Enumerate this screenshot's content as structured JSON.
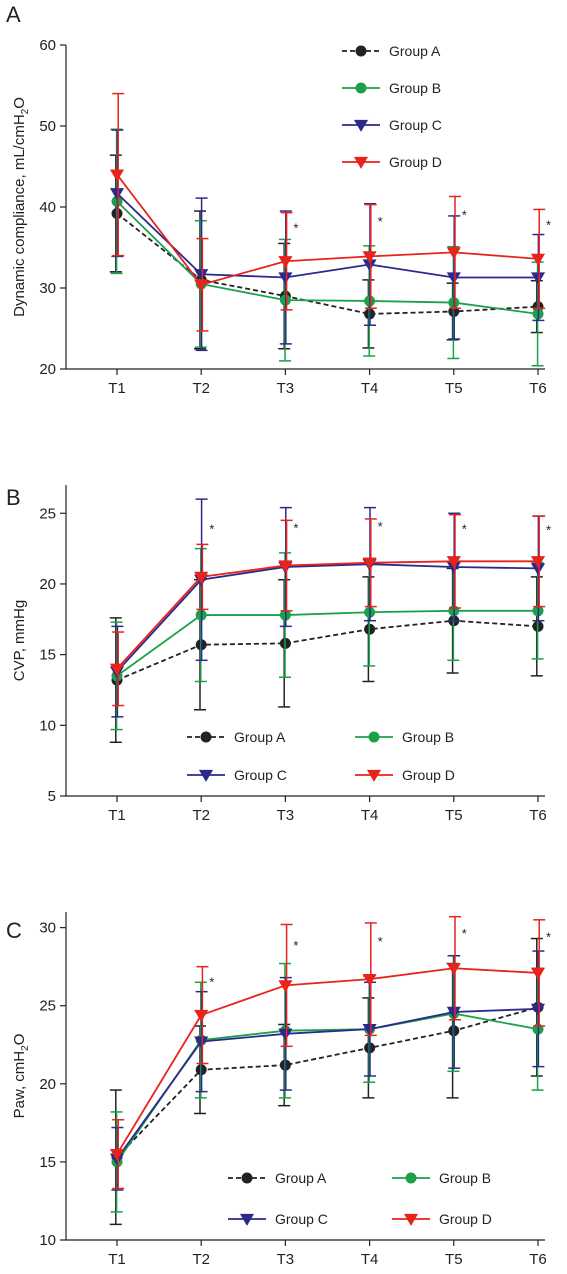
{
  "chart_data": [
    {
      "panel_label": "A",
      "type": "line",
      "ylabel_parts": [
        "Dynamic compliance, mL/cmH",
        "2",
        "O"
      ],
      "categories": [
        "T1",
        "T2",
        "T3",
        "T4",
        "T5",
        "T6"
      ],
      "ylim": [
        20,
        60
      ],
      "yticks": [
        20,
        30,
        40,
        50,
        60
      ],
      "grid": false,
      "legend_placement": "top-right",
      "legend_order": [
        0,
        1,
        2,
        3
      ],
      "series": [
        {
          "name": "Group A",
          "color": "#222222",
          "marker": "circle",
          "dashed": true,
          "values": [
            39.2,
            31.0,
            29.0,
            26.8,
            27.1,
            27.7
          ],
          "err": [
            7.2,
            8.5,
            6.5,
            4.2,
            3.5,
            3.2
          ]
        },
        {
          "name": "Group B",
          "color": "#1aa14a",
          "marker": "circle",
          "dashed": false,
          "values": [
            40.7,
            30.5,
            28.5,
            28.4,
            28.2,
            26.8
          ],
          "err": [
            8.9,
            7.8,
            7.5,
            6.8,
            6.9,
            6.4
          ]
        },
        {
          "name": "Group C",
          "color": "#2b2a8c",
          "marker": "triangle-down",
          "dashed": false,
          "values": [
            41.7,
            31.7,
            31.3,
            32.9,
            31.3,
            31.3
          ],
          "err": [
            7.8,
            9.4,
            8.2,
            7.5,
            7.6,
            5.3
          ]
        },
        {
          "name": "Group D",
          "color": "#e8231c",
          "marker": "triangle-down",
          "dashed": false,
          "values": [
            44.0,
            30.4,
            33.3,
            33.9,
            34.4,
            33.6
          ],
          "err": [
            10.0,
            5.7,
            6.0,
            6.4,
            6.9,
            6.1
          ]
        }
      ],
      "significance": [
        "",
        "",
        "*",
        "*",
        "*",
        "*"
      ]
    },
    {
      "panel_label": "B",
      "type": "line",
      "ylabel_parts": [
        "CVP, mmHg"
      ],
      "categories": [
        "T1",
        "T2",
        "T3",
        "T4",
        "T5",
        "T6"
      ],
      "ylim": [
        5,
        27
      ],
      "yticks": [
        5,
        10,
        15,
        20,
        25
      ],
      "grid": false,
      "legend_placement": "bottom-center",
      "legend_order": [
        0,
        2,
        1,
        3
      ],
      "series": [
        {
          "name": "Group A",
          "color": "#222222",
          "marker": "circle",
          "dashed": true,
          "values": [
            13.2,
            15.7,
            15.8,
            16.8,
            17.4,
            17.0
          ],
          "err": [
            4.4,
            4.6,
            4.5,
            3.7,
            3.7,
            3.5
          ]
        },
        {
          "name": "Group B",
          "color": "#1aa14a",
          "marker": "circle",
          "dashed": false,
          "values": [
            13.5,
            17.8,
            17.8,
            18.0,
            18.1,
            18.1
          ],
          "err": [
            3.8,
            4.7,
            4.4,
            3.8,
            3.5,
            3.4
          ]
        },
        {
          "name": "Group C",
          "color": "#2b2a8c",
          "marker": "triangle-down",
          "dashed": false,
          "values": [
            13.8,
            20.3,
            21.2,
            21.4,
            21.2,
            21.1
          ],
          "err": [
            3.2,
            5.7,
            4.2,
            4.0,
            3.8,
            3.7
          ]
        },
        {
          "name": "Group D",
          "color": "#e8231c",
          "marker": "triangle-down",
          "dashed": false,
          "values": [
            14.0,
            20.5,
            21.3,
            21.5,
            21.6,
            21.6
          ],
          "err": [
            2.6,
            2.3,
            3.2,
            3.1,
            3.3,
            3.2
          ]
        }
      ],
      "significance": [
        "",
        "*",
        "*",
        "*",
        "*",
        "*"
      ]
    },
    {
      "panel_label": "C",
      "type": "line",
      "ylabel_parts": [
        "Paw, cmH",
        "2",
        "O"
      ],
      "categories": [
        "T1",
        "T2",
        "T3",
        "T4",
        "T5",
        "T6"
      ],
      "ylim": [
        10,
        31
      ],
      "yticks": [
        10,
        15,
        20,
        25,
        30
      ],
      "grid": false,
      "legend_placement": "bottom-center",
      "legend_order": [
        0,
        2,
        1,
        3
      ],
      "series": [
        {
          "name": "Group A",
          "color": "#222222",
          "marker": "circle",
          "dashed": true,
          "values": [
            15.3,
            20.9,
            21.2,
            22.3,
            23.4,
            24.9
          ],
          "err": [
            4.3,
            2.8,
            2.6,
            3.2,
            4.3,
            4.4
          ]
        },
        {
          "name": "Group B",
          "color": "#1aa14a",
          "marker": "circle",
          "dashed": false,
          "values": [
            15.0,
            22.8,
            23.4,
            23.5,
            24.5,
            23.5
          ],
          "err": [
            3.2,
            3.7,
            4.3,
            3.4,
            3.7,
            3.9
          ]
        },
        {
          "name": "Group C",
          "color": "#2b2a8c",
          "marker": "triangle-down",
          "dashed": false,
          "values": [
            15.2,
            22.7,
            23.2,
            23.5,
            24.6,
            24.8
          ],
          "err": [
            2.0,
            3.2,
            3.6,
            3.0,
            3.6,
            3.7
          ]
        },
        {
          "name": "Group D",
          "color": "#e8231c",
          "marker": "triangle-down",
          "dashed": false,
          "values": [
            15.5,
            24.4,
            26.3,
            26.7,
            27.4,
            27.1
          ],
          "err": [
            2.2,
            3.1,
            3.9,
            3.6,
            3.3,
            3.4
          ]
        }
      ],
      "significance": [
        "",
        "*",
        "*",
        "*",
        "*",
        "*"
      ]
    }
  ]
}
